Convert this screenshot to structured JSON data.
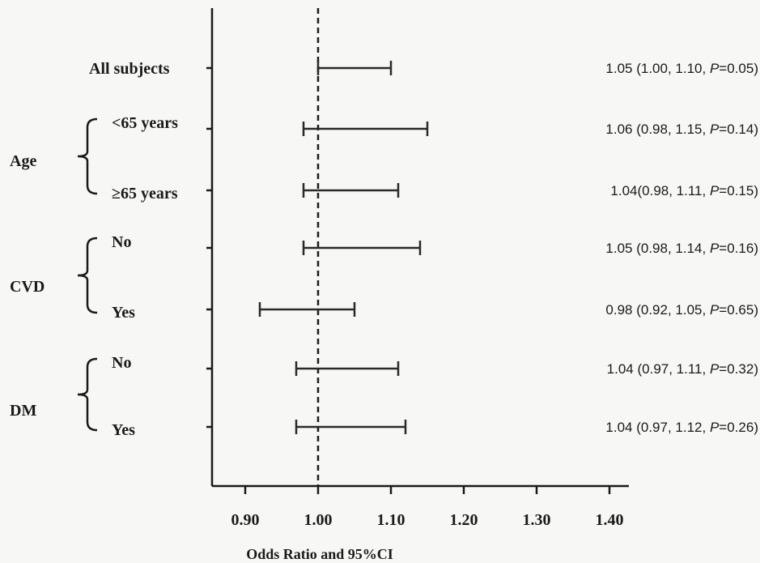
{
  "chart_data": {
    "type": "forest",
    "xlabel": "Odds Ratio and 95%CI",
    "xlim": [
      0.86,
      1.4
    ],
    "xticks": [
      0.9,
      1.0,
      1.1,
      1.2,
      1.3,
      1.4
    ],
    "xtick_labels": [
      "0.90",
      "1.00",
      "1.10",
      "1.20",
      "1.30",
      "1.40"
    ],
    "reference_line": 1.0,
    "rows": [
      {
        "label": "All subjects",
        "or": 1.05,
        "lower": 1.0,
        "upper": 1.1,
        "p": "0.05",
        "annotation_prefix": "1.05 (1.00, 1.10, ",
        "group": null
      },
      {
        "label": "<65 years",
        "or": 1.06,
        "lower": 0.98,
        "upper": 1.15,
        "p": "0.14",
        "annotation_prefix": "1.06 (0.98, 1.15, ",
        "group": 0
      },
      {
        "label": "≥65 years",
        "or": 1.04,
        "lower": 0.98,
        "upper": 1.11,
        "p": "0.15",
        "annotation_prefix": "1.04(0.98, 1.11, ",
        "group": 0
      },
      {
        "label": "No",
        "or": 1.05,
        "lower": 0.98,
        "upper": 1.14,
        "p": "0.16",
        "annotation_prefix": "1.05 (0.98, 1.14, ",
        "group": 1
      },
      {
        "label": "Yes",
        "or": 0.98,
        "lower": 0.92,
        "upper": 1.05,
        "p": "0.65",
        "annotation_prefix": "0.98 (0.92, 1.05, ",
        "group": 1
      },
      {
        "label": "No",
        "or": 1.04,
        "lower": 0.97,
        "upper": 1.11,
        "p": "0.32",
        "annotation_prefix": "1.04 (0.97, 1.11, ",
        "group": 2
      },
      {
        "label": "Yes",
        "or": 1.04,
        "lower": 0.97,
        "upper": 1.12,
        "p": "0.26",
        "annotation_prefix": "1.04 (0.97, 1.12, ",
        "group": 2
      }
    ],
    "groups": [
      "Age",
      "CVD",
      "DM"
    ],
    "p_label": "P",
    "p_eq": "=",
    "annotation_suffix": ")"
  }
}
